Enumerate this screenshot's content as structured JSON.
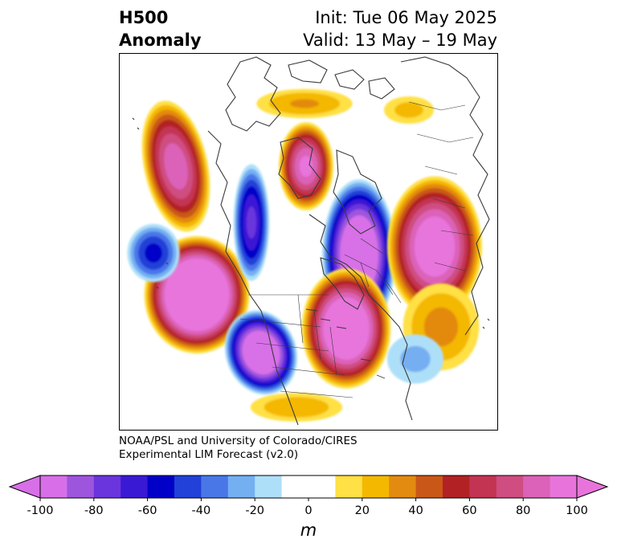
{
  "header": {
    "title_line1": "H500",
    "title_line2": "Anomaly",
    "init_label": "Init: Tue 06 May 2025",
    "valid_label": "Valid: 13 May – 19 May"
  },
  "credit": {
    "line1": "NOAA/PSL and University of Colorado/CIRES",
    "line2": "Experimental LIM Forecast (v2.0)"
  },
  "colorbar": {
    "units": "m",
    "min": -100,
    "max": 100,
    "ticks": [
      "-100",
      "-80",
      "-60",
      "-40",
      "-20",
      "0",
      "20",
      "40",
      "60",
      "80",
      "100"
    ],
    "colors": [
      "#d86fe8",
      "#9e55de",
      "#6a35dc",
      "#3a19d4",
      "#0000c8",
      "#2141d8",
      "#4a77e8",
      "#74aff2",
      "#aedff9",
      "#ffffff",
      "#ffffff",
      "#ffe045",
      "#f4b800",
      "#e38a10",
      "#c95818",
      "#b22224",
      "#c33452",
      "#cf4d80",
      "#db62b8",
      "#e874db"
    ]
  },
  "map": {
    "projection": "north-polar-stereographic",
    "colors": {
      "land_outline": "#3a3a3a"
    }
  }
}
